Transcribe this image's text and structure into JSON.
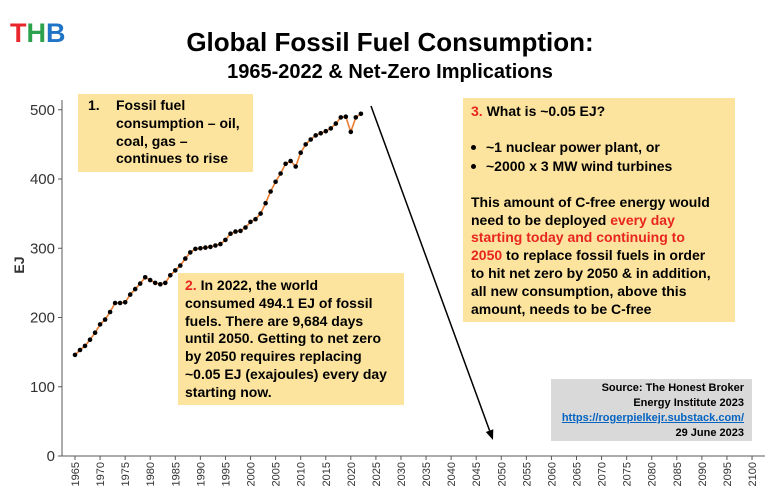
{
  "logo": {
    "text": "THB",
    "letters": [
      {
        "char": "T",
        "color": "#e8262b"
      },
      {
        "char": "H",
        "color": "#2ca24c"
      },
      {
        "char": "B",
        "color": "#1f74c6"
      }
    ]
  },
  "title": "Global Fossil Fuel Consumption:",
  "subtitle": "1965-2022 & Net-Zero Implications",
  "chart_data": {
    "type": "line",
    "xlabel": "",
    "ylabel": "EJ",
    "xlim": [
      1965,
      2100
    ],
    "ylim": [
      0,
      500
    ],
    "xticks": [
      1965,
      1970,
      1975,
      1980,
      1985,
      1990,
      1995,
      2000,
      2005,
      2010,
      2015,
      2020,
      2025,
      2030,
      2035,
      2040,
      2045,
      2050,
      2055,
      2060,
      2065,
      2070,
      2075,
      2080,
      2085,
      2090,
      2095,
      2100
    ],
    "yticks": [
      0,
      100,
      200,
      300,
      400,
      500
    ],
    "grid": false,
    "legend": "none",
    "line_color": "#ed7d31",
    "marker_color": "#000000",
    "x": [
      1965,
      1966,
      1967,
      1968,
      1969,
      1970,
      1971,
      1972,
      1973,
      1974,
      1975,
      1976,
      1977,
      1978,
      1979,
      1980,
      1981,
      1982,
      1983,
      1984,
      1985,
      1986,
      1987,
      1988,
      1989,
      1990,
      1991,
      1992,
      1993,
      1994,
      1995,
      1996,
      1997,
      1998,
      1999,
      2000,
      2001,
      2002,
      2003,
      2004,
      2005,
      2006,
      2007,
      2008,
      2009,
      2010,
      2011,
      2012,
      2013,
      2014,
      2015,
      2016,
      2017,
      2018,
      2019,
      2020,
      2021,
      2022
    ],
    "series": [
      {
        "values": [
          146,
          153,
          159,
          168,
          178,
          190,
          197,
          208,
          221,
          221,
          222,
          233,
          241,
          249,
          258,
          254,
          250,
          248,
          250,
          261,
          268,
          275,
          285,
          294,
          299,
          300,
          301,
          302,
          304,
          306,
          312,
          321,
          324,
          325,
          330,
          338,
          342,
          350,
          365,
          382,
          396,
          408,
          422,
          426,
          418,
          438,
          450,
          457,
          463,
          466,
          469,
          473,
          480,
          489,
          490,
          468,
          489,
          494.1
        ]
      }
    ]
  },
  "notes": {
    "note1": {
      "number": "1.",
      "text": "Fossil fuel consumption – oil, coal, gas – continues to rise"
    },
    "note2": {
      "number": "2.",
      "text": "In 2022, the world consumed 494.1 EJ of fossil fuels.  There are 9,684 days until 2050. Getting to net zero by 2050 requires replacing ~0.05 EJ (exajoules) every day starting now."
    },
    "note3": {
      "number": "3.",
      "heading": "What is ~0.05 EJ?",
      "bullets": [
        "~1 nuclear power plant, or",
        "~2000 x 3 MW wind turbines"
      ],
      "body_before": "This amount of C-free energy would need to be deployed ",
      "body_highlight": "every day starting today and continuing to 2050",
      "body_after": " to replace fossil fuels in order to hit net zero by 2050 & in addition, all new consumption, above this amount, needs to be C-free"
    }
  },
  "source": {
    "line1": "Source: The Honest Broker",
    "line2": "Energy Institute 2023",
    "link": "https://rogerpielkejr.substack.com/",
    "date": "29 June 2023"
  },
  "colors": {
    "note_fill": "#fde49e",
    "source_fill": "#d9d9d9",
    "highlight": "#e8251f",
    "link": "#0563c1",
    "axis": "#595959"
  }
}
